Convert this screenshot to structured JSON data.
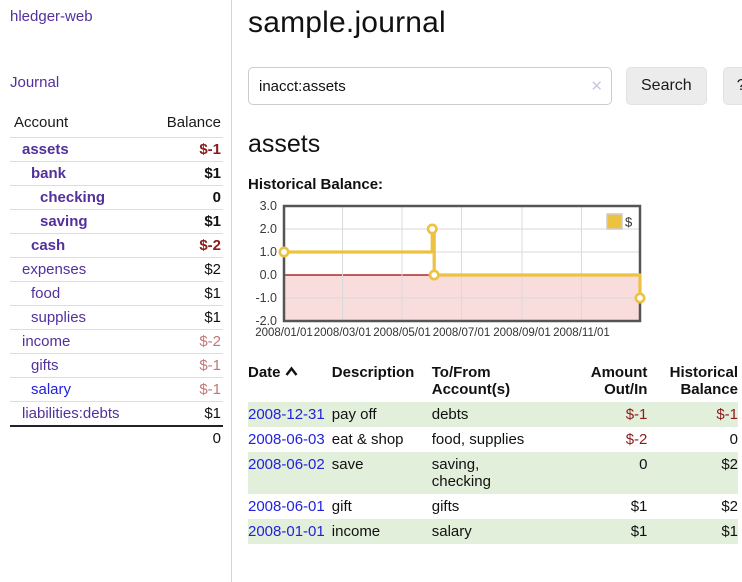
{
  "app": {
    "brand": "hledger-web"
  },
  "sidebar": {
    "journal_link": "Journal",
    "header": {
      "account": "Account",
      "balance": "Balance"
    },
    "accounts": [
      {
        "label": "assets",
        "indent": 1,
        "bold": true,
        "balance": "$-1",
        "balance_class": "bal-neg-strong"
      },
      {
        "label": "bank",
        "indent": 2,
        "bold": true,
        "balance": "$1",
        "balance_class": "bal-pos"
      },
      {
        "label": "checking",
        "indent": 3,
        "bold": true,
        "balance": "0",
        "balance_class": "bal-pos"
      },
      {
        "label": "saving",
        "indent": 3,
        "bold": true,
        "balance": "$1",
        "balance_class": "bal-pos"
      },
      {
        "label": "cash",
        "indent": 2,
        "bold": true,
        "balance": "$-2",
        "balance_class": "bal-neg-strong"
      },
      {
        "label": "expenses",
        "indent": 1,
        "bold": false,
        "balance": "$2",
        "balance_class": "bal-pos"
      },
      {
        "label": "food",
        "indent": 2,
        "bold": false,
        "balance": "$1",
        "balance_class": "bal-pos"
      },
      {
        "label": "supplies",
        "indent": 2,
        "bold": false,
        "balance": "$1",
        "balance_class": "bal-pos"
      },
      {
        "label": "income",
        "indent": 1,
        "bold": false,
        "balance": "$-2",
        "balance_class": "bal-neg-faded"
      },
      {
        "label": "gifts",
        "indent": 2,
        "bold": false,
        "balance": "$-1",
        "balance_class": "bal-neg-faded"
      },
      {
        "label": "salary",
        "indent": 2,
        "bold": false,
        "unvisited": true,
        "balance": "$-1",
        "balance_class": "bal-neg-faded"
      },
      {
        "label": "liabilities:debts",
        "indent": 1,
        "bold": false,
        "balance": "$1",
        "balance_class": "bal-pos"
      }
    ],
    "total": "0"
  },
  "header": {
    "title": "sample.journal"
  },
  "search": {
    "query": "inacct:assets",
    "clear_icon": "✕",
    "search_label": "Search",
    "help_label": "?"
  },
  "account_page": {
    "heading": "assets",
    "chart_label": "Historical Balance:"
  },
  "chart_data": {
    "type": "line",
    "title": "Historical Balance:",
    "legend": {
      "label": "$",
      "position": "top-right",
      "color": "#edc240"
    },
    "ylim": [
      -2.0,
      3.0
    ],
    "y_ticks": [
      3.0,
      2.0,
      1.0,
      0.0,
      -1.0,
      -2.0
    ],
    "x_ticks": [
      {
        "label": "2008/01/01",
        "day": 0
      },
      {
        "label": "2008/03/01",
        "day": 60
      },
      {
        "label": "2008/05/01",
        "day": 121
      },
      {
        "label": "2008/07/01",
        "day": 182
      },
      {
        "label": "2008/09/01",
        "day": 244
      },
      {
        "label": "2008/11/01",
        "day": 305
      }
    ],
    "x_range_days": [
      0,
      365
    ],
    "series": [
      {
        "name": "$",
        "color": "#edc240",
        "style": "step-after",
        "points": [
          {
            "date": "2008-01-01",
            "day": 0,
            "value": 1
          },
          {
            "date": "2008-06-01",
            "day": 152,
            "value": 2
          },
          {
            "date": "2008-06-03",
            "day": 154,
            "value": 0
          },
          {
            "date": "2008-12-31",
            "day": 365,
            "value": -1
          }
        ]
      }
    ],
    "grid": true,
    "negative_region_fill": "#f9dcdc",
    "zero_line_color": "#a40000",
    "border_color": "#555555"
  },
  "register": {
    "columns": [
      {
        "label": "Date",
        "align": "left",
        "sort_icon": "chevron-up"
      },
      {
        "label": "Description",
        "align": "left"
      },
      {
        "label": "To/From Account(s)",
        "align": "left"
      },
      {
        "label": "Amount Out/In",
        "align": "right"
      },
      {
        "label": "Historical Balance",
        "align": "right"
      }
    ],
    "rows": [
      {
        "date": "2008-12-31",
        "description": "pay off",
        "accounts": "debts",
        "amount": "$-1",
        "amount_negative": true,
        "balance": "$-1",
        "balance_negative": true
      },
      {
        "date": "2008-06-03",
        "description": "eat & shop",
        "accounts": "food, supplies",
        "amount": "$-2",
        "amount_negative": true,
        "balance": "0",
        "balance_negative": false
      },
      {
        "date": "2008-06-02",
        "description": "save",
        "accounts": "saving, checking",
        "amount": "0",
        "amount_negative": false,
        "balance": "$2",
        "balance_negative": false
      },
      {
        "date": "2008-06-01",
        "description": "gift",
        "accounts": "gifts",
        "amount": "$1",
        "amount_negative": false,
        "balance": "$2",
        "balance_negative": false
      },
      {
        "date": "2008-01-01",
        "description": "income",
        "accounts": "salary",
        "amount": "$1",
        "amount_negative": false,
        "balance": "$1",
        "balance_negative": false
      }
    ]
  }
}
